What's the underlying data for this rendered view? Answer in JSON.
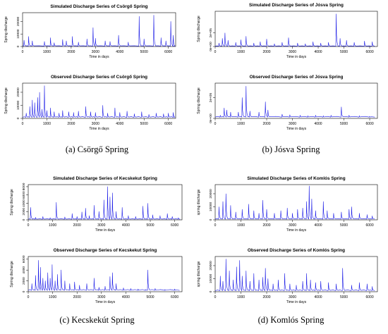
{
  "colors": {
    "series": "#1a1ae6",
    "axis": "#000000",
    "background": "#ffffff"
  },
  "panels": [
    {
      "id": "a",
      "caption": "(a) Csörgő Spring",
      "charts": [
        {
          "title": "Simulated Discharge Series of Csörgő Spring",
          "ylabel": "Spring discharge",
          "xlabel": "Time in days",
          "xticks": [
            "0",
            "1000",
            "2000",
            "3000",
            "4000",
            "5000",
            "6000"
          ],
          "yticks": [
            "0",
            "10000",
            "20000"
          ]
        },
        {
          "title": "Observed Discharge Series of Csörgő Spring",
          "ylabel": "Spring discharge",
          "xlabel": "Time in days",
          "xticks": [
            "0",
            "1000",
            "2000",
            "3000",
            "4000",
            "5000",
            "6000"
          ],
          "yticks": [
            "0",
            "10000",
            "20000"
          ]
        }
      ]
    },
    {
      "id": "b",
      "caption": "(b) Jósva Spring",
      "charts": [
        {
          "title": "Simulated Discharge Series of Jósva Spring",
          "ylabel": "Spring discharge",
          "xlabel": "Time in days",
          "xticks": [
            "0",
            "1000",
            "2000",
            "3000",
            "4000",
            "5000",
            "6000"
          ],
          "yticks": [
            "0e+00",
            "2e+05"
          ]
        },
        {
          "title": "Observed Discharge Series of Jósva Spring",
          "ylabel": "Spring discharge",
          "xlabel": "Time in days",
          "xticks": [
            "0",
            "1000",
            "2000",
            "3000",
            "4000",
            "5000",
            "6000"
          ],
          "yticks": [
            "0e+00",
            "2e+05"
          ]
        }
      ]
    },
    {
      "id": "c",
      "caption": "(c) Kecskekút Spring",
      "charts": [
        {
          "title": "Simulated Discharge Series of Kecskekut Spring",
          "ylabel": "Spring discharge",
          "xlabel": "Time in days",
          "xticks": [
            "0",
            "1000",
            "2000",
            "3000",
            "4000",
            "5000",
            "6000"
          ],
          "yticks": [
            "0",
            "2000",
            "4000",
            "6000",
            "8000"
          ]
        },
        {
          "title": "Observed Discharge Series of Kecskekut Spring",
          "ylabel": "Spring discharge",
          "xlabel": "Time in days",
          "xticks": [
            "0",
            "1000",
            "2000",
            "3000",
            "4000",
            "5000",
            "6000"
          ],
          "yticks": [
            "0",
            "2000",
            "4000",
            "6000"
          ]
        }
      ]
    },
    {
      "id": "d",
      "caption": "(d) Komlós Spring",
      "charts": [
        {
          "title": "Simulated Discharge Series of Komlós Spring",
          "ylabel": "spring discharge",
          "xlabel": "Time in days",
          "xticks": [
            "0",
            "1000",
            "2000",
            "3000",
            "4000",
            "5000",
            "6000"
          ],
          "yticks": [
            "0",
            "10000",
            "20000"
          ]
        },
        {
          "title": "Observed Discharge Series of Komlós Spring",
          "ylabel": "spring discharge",
          "xlabel": "Time in days",
          "xticks": [
            "0",
            "1000",
            "2000",
            "3000",
            "4000",
            "5000",
            "6000"
          ],
          "yticks": [
            "0",
            "10000",
            "20000"
          ]
        }
      ]
    }
  ],
  "chart_data": [
    {
      "type": "line",
      "title": "Simulated Discharge Series of Csörgő Spring",
      "xlabel": "Time in days",
      "ylabel": "Spring discharge",
      "xlim": [
        0,
        6300
      ],
      "ylim": [
        0,
        27000
      ],
      "base": 400,
      "peaks": [
        [
          60,
          5000
        ],
        [
          250,
          8000
        ],
        [
          400,
          4500
        ],
        [
          900,
          4000
        ],
        [
          1150,
          7000
        ],
        [
          1300,
          3000
        ],
        [
          1650,
          5500
        ],
        [
          1800,
          4500
        ],
        [
          2050,
          8000
        ],
        [
          2300,
          3500
        ],
        [
          2650,
          6000
        ],
        [
          2900,
          15000
        ],
        [
          3000,
          6500
        ],
        [
          3400,
          4500
        ],
        [
          3600,
          4000
        ],
        [
          3950,
          9000
        ],
        [
          4350,
          3500
        ],
        [
          4800,
          24000
        ],
        [
          5000,
          6000
        ],
        [
          5400,
          25000
        ],
        [
          5700,
          7000
        ],
        [
          5900,
          4500
        ],
        [
          6100,
          20000
        ],
        [
          6200,
          9000
        ]
      ]
    },
    {
      "type": "line",
      "title": "Observed Discharge Series of Csörgő Spring",
      "xlabel": "Time in days",
      "ylabel": "Spring discharge",
      "xlim": [
        0,
        6300
      ],
      "ylim": [
        0,
        27000
      ],
      "base": 800,
      "peaks": [
        [
          150,
          4000
        ],
        [
          300,
          9000
        ],
        [
          400,
          14000
        ],
        [
          500,
          12000
        ],
        [
          620,
          16000
        ],
        [
          700,
          20000
        ],
        [
          800,
          7000
        ],
        [
          900,
          25000
        ],
        [
          1000,
          6000
        ],
        [
          1150,
          8000
        ],
        [
          1300,
          5000
        ],
        [
          1500,
          4000
        ],
        [
          1650,
          6000
        ],
        [
          1900,
          5000
        ],
        [
          2100,
          4500
        ],
        [
          2300,
          5500
        ],
        [
          2600,
          9000
        ],
        [
          2800,
          5000
        ],
        [
          3000,
          4500
        ],
        [
          3300,
          10000
        ],
        [
          3500,
          4000
        ],
        [
          3800,
          8000
        ],
        [
          4000,
          4500
        ],
        [
          4300,
          5500
        ],
        [
          4600,
          3500
        ],
        [
          4900,
          5000
        ],
        [
          5200,
          3000
        ],
        [
          5500,
          4000
        ],
        [
          5800,
          3500
        ],
        [
          6000,
          4000
        ],
        [
          6200,
          4500
        ]
      ]
    },
    {
      "type": "line",
      "title": "Simulated Discharge Series of Jósva Spring",
      "xlabel": "Time in days",
      "ylabel": "Spring discharge",
      "xlim": [
        0,
        6300
      ],
      "ylim": [
        0,
        520000
      ],
      "base": 6000,
      "peaks": [
        [
          150,
          50000
        ],
        [
          280,
          120000
        ],
        [
          380,
          200000
        ],
        [
          500,
          90000
        ],
        [
          800,
          60000
        ],
        [
          1000,
          100000
        ],
        [
          1200,
          150000
        ],
        [
          1500,
          50000
        ],
        [
          1750,
          70000
        ],
        [
          2000,
          110000
        ],
        [
          2300,
          40000
        ],
        [
          2600,
          60000
        ],
        [
          2850,
          130000
        ],
        [
          3200,
          50000
        ],
        [
          3500,
          40000
        ],
        [
          3800,
          70000
        ],
        [
          4100,
          50000
        ],
        [
          4400,
          60000
        ],
        [
          4700,
          480000
        ],
        [
          4850,
          120000
        ],
        [
          5100,
          90000
        ],
        [
          5400,
          60000
        ],
        [
          5800,
          80000
        ],
        [
          6100,
          70000
        ]
      ]
    },
    {
      "type": "line",
      "title": "Observed Discharge Series of Jósva Spring",
      "xlabel": "Time in days",
      "ylabel": "Spring discharge",
      "xlim": [
        0,
        6300
      ],
      "ylim": [
        0,
        340000
      ],
      "base": 12000,
      "peaks": [
        [
          200,
          30000
        ],
        [
          350,
          100000
        ],
        [
          450,
          80000
        ],
        [
          600,
          60000
        ],
        [
          900,
          60000
        ],
        [
          1050,
          200000
        ],
        [
          1200,
          310000
        ],
        [
          1350,
          70000
        ],
        [
          1700,
          60000
        ],
        [
          1950,
          160000
        ],
        [
          2050,
          80000
        ],
        [
          2600,
          40000
        ],
        [
          2900,
          35000
        ],
        [
          3300,
          30000
        ],
        [
          3600,
          25000
        ],
        [
          3900,
          30000
        ],
        [
          4200,
          25000
        ],
        [
          4500,
          30000
        ],
        [
          4900,
          110000
        ],
        [
          5200,
          30000
        ],
        [
          5600,
          25000
        ],
        [
          6000,
          20000
        ]
      ]
    },
    {
      "type": "line",
      "title": "Simulated Discharge Series of Kecskekut Spring",
      "xlabel": "Time in days",
      "ylabel": "Spring discharge",
      "xlim": [
        0,
        6300
      ],
      "ylim": [
        0,
        8500
      ],
      "base": 150,
      "peaks": [
        [
          100,
          3000
        ],
        [
          300,
          600
        ],
        [
          600,
          800
        ],
        [
          900,
          500
        ],
        [
          1150,
          4200
        ],
        [
          1500,
          700
        ],
        [
          1800,
          1500
        ],
        [
          2000,
          800
        ],
        [
          2200,
          1900
        ],
        [
          2350,
          2800
        ],
        [
          2500,
          1000
        ],
        [
          2700,
          3500
        ],
        [
          2900,
          2000
        ],
        [
          3100,
          4800
        ],
        [
          3250,
          8000
        ],
        [
          3350,
          5500
        ],
        [
          3450,
          6500
        ],
        [
          3600,
          2000
        ],
        [
          3850,
          3000
        ],
        [
          4100,
          1000
        ],
        [
          4400,
          800
        ],
        [
          4700,
          3300
        ],
        [
          4900,
          4000
        ],
        [
          5100,
          1200
        ],
        [
          5400,
          1000
        ],
        [
          5700,
          1500
        ],
        [
          5900,
          800
        ],
        [
          6150,
          500
        ]
      ]
    },
    {
      "type": "line",
      "title": "Observed Discharge Series of Kecskekut Spring",
      "xlabel": "Time in days",
      "ylabel": "Spring discharge",
      "xlim": [
        0,
        6300
      ],
      "ylim": [
        0,
        6500
      ],
      "base": 250,
      "peaks": [
        [
          150,
          1500
        ],
        [
          300,
          3000
        ],
        [
          420,
          5800
        ],
        [
          500,
          4500
        ],
        [
          600,
          2500
        ],
        [
          700,
          2000
        ],
        [
          800,
          3500
        ],
        [
          900,
          2500
        ],
        [
          980,
          5000
        ],
        [
          1100,
          2000
        ],
        [
          1200,
          3200
        ],
        [
          1350,
          4000
        ],
        [
          1500,
          2000
        ],
        [
          1700,
          1500
        ],
        [
          1900,
          1800
        ],
        [
          2100,
          1200
        ],
        [
          2400,
          1500
        ],
        [
          2700,
          2500
        ],
        [
          2900,
          800
        ],
        [
          3150,
          1000
        ],
        [
          3350,
          2800
        ],
        [
          3450,
          3500
        ],
        [
          3600,
          1500
        ],
        [
          3900,
          700
        ],
        [
          4200,
          600
        ],
        [
          4500,
          500
        ],
        [
          4800,
          400
        ],
        [
          4900,
          4000
        ],
        [
          5200,
          600
        ],
        [
          5600,
          400
        ],
        [
          6000,
          500
        ]
      ]
    },
    {
      "type": "line",
      "title": "Simulated Discharge Series of Komlós Spring",
      "xlabel": "Time in days",
      "ylabel": "spring discharge",
      "xlim": [
        0,
        6300
      ],
      "ylim": [
        0,
        27000
      ],
      "base": 600,
      "peaks": [
        [
          150,
          10000
        ],
        [
          300,
          14000
        ],
        [
          420,
          20000
        ],
        [
          600,
          11000
        ],
        [
          800,
          6000
        ],
        [
          1050,
          8000
        ],
        [
          1300,
          12000
        ],
        [
          1500,
          7000
        ],
        [
          1700,
          5000
        ],
        [
          1850,
          15000
        ],
        [
          2000,
          8000
        ],
        [
          2300,
          5000
        ],
        [
          2550,
          7000
        ],
        [
          2800,
          9000
        ],
        [
          3000,
          5000
        ],
        [
          3200,
          8000
        ],
        [
          3400,
          9000
        ],
        [
          3550,
          14000
        ],
        [
          3650,
          26000
        ],
        [
          3750,
          16000
        ],
        [
          3900,
          7000
        ],
        [
          4200,
          14000
        ],
        [
          4350,
          7000
        ],
        [
          4600,
          5000
        ],
        [
          4900,
          6000
        ],
        [
          5200,
          8000
        ],
        [
          5300,
          10000
        ],
        [
          5600,
          5000
        ],
        [
          5900,
          4000
        ],
        [
          6100,
          3000
        ]
      ]
    },
    {
      "type": "line",
      "title": "Observed Discharge Series of Komlós Spring",
      "xlabel": "Time in days",
      "ylabel": "spring discharge",
      "xlim": [
        0,
        6300
      ],
      "ylim": [
        0,
        27000
      ],
      "base": 800,
      "peaks": [
        [
          200,
          12000
        ],
        [
          300,
          8000
        ],
        [
          420,
          25000
        ],
        [
          550,
          16000
        ],
        [
          700,
          9000
        ],
        [
          830,
          19000
        ],
        [
          950,
          24000
        ],
        [
          1050,
          12000
        ],
        [
          1200,
          16000
        ],
        [
          1350,
          8000
        ],
        [
          1500,
          14000
        ],
        [
          1700,
          9000
        ],
        [
          1850,
          11000
        ],
        [
          1950,
          18000
        ],
        [
          2050,
          10000
        ],
        [
          2250,
          6000
        ],
        [
          2450,
          9000
        ],
        [
          2700,
          14000
        ],
        [
          2900,
          6000
        ],
        [
          3150,
          5000
        ],
        [
          3400,
          8000
        ],
        [
          3550,
          14000
        ],
        [
          3700,
          9000
        ],
        [
          3900,
          7000
        ],
        [
          4100,
          8000
        ],
        [
          4400,
          7000
        ],
        [
          4700,
          6000
        ],
        [
          4950,
          18000
        ],
        [
          5300,
          5000
        ],
        [
          5600,
          7000
        ],
        [
          5900,
          6000
        ],
        [
          6100,
          4000
        ]
      ]
    }
  ]
}
